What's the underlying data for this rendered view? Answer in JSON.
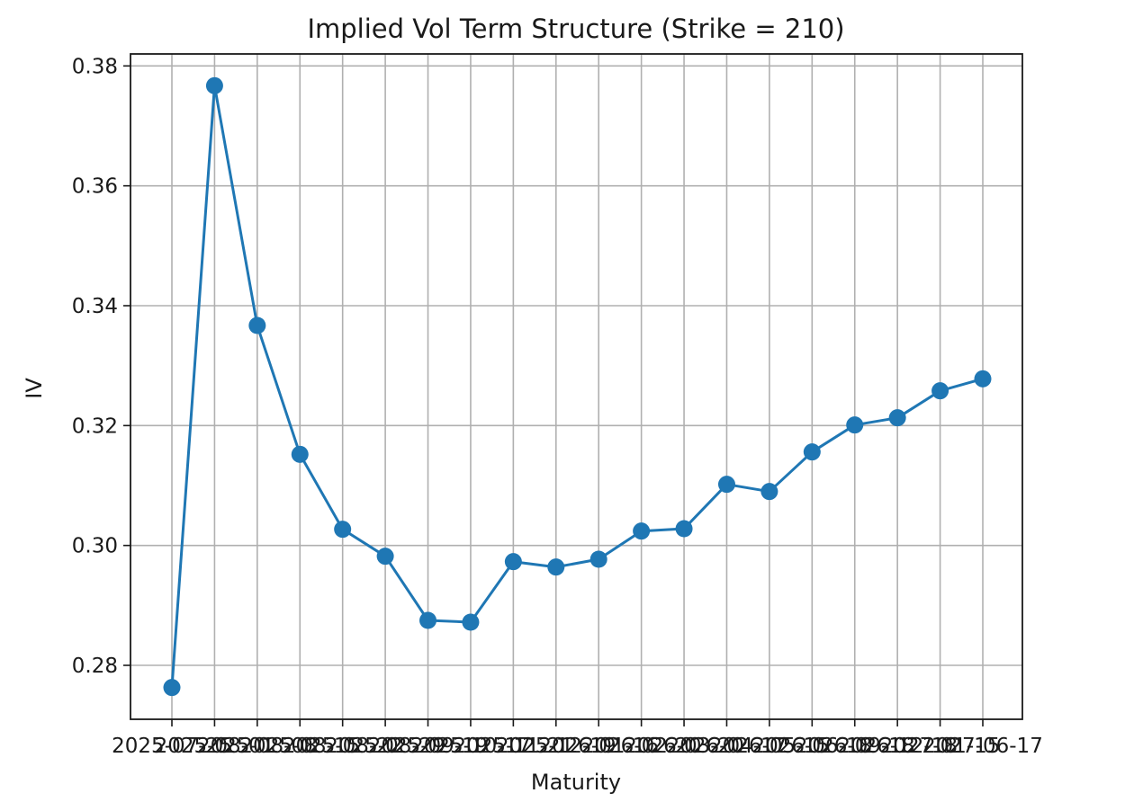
{
  "chart_data": {
    "type": "line",
    "title": "Implied Vol Term Structure (Strike = 210)",
    "xlabel": "Maturity",
    "ylabel": "IV",
    "ylim": [
      0.271,
      0.382
    ],
    "y_ticks": [
      "0.28",
      "0.30",
      "0.32",
      "0.34",
      "0.36",
      "0.38"
    ],
    "grid": true,
    "categories": [
      "2025-07-25",
      "2025-08-01",
      "2025-08-08",
      "2025-08-15",
      "2025-08-22",
      "2025-08-29",
      "2025-09-19",
      "2025-10-17",
      "2025-11-21",
      "2025-12-19",
      "2026-01-16",
      "2026-02-20",
      "2026-03-20",
      "2026-04-17",
      "2026-05-15",
      "2026-06-18",
      "2026-09-18",
      "2026-12-18",
      "2027-01-15",
      "2027-06-17"
    ],
    "series": [
      {
        "color": "#1f77b4",
        "values": [
          0.2763,
          0.3767,
          0.3367,
          0.3152,
          0.3027,
          0.2982,
          0.2875,
          0.2872,
          0.2973,
          0.2964,
          0.2977,
          0.3024,
          0.3028,
          0.3102,
          0.309,
          0.3156,
          0.3201,
          0.3213,
          0.3258,
          0.3278
        ]
      }
    ]
  }
}
